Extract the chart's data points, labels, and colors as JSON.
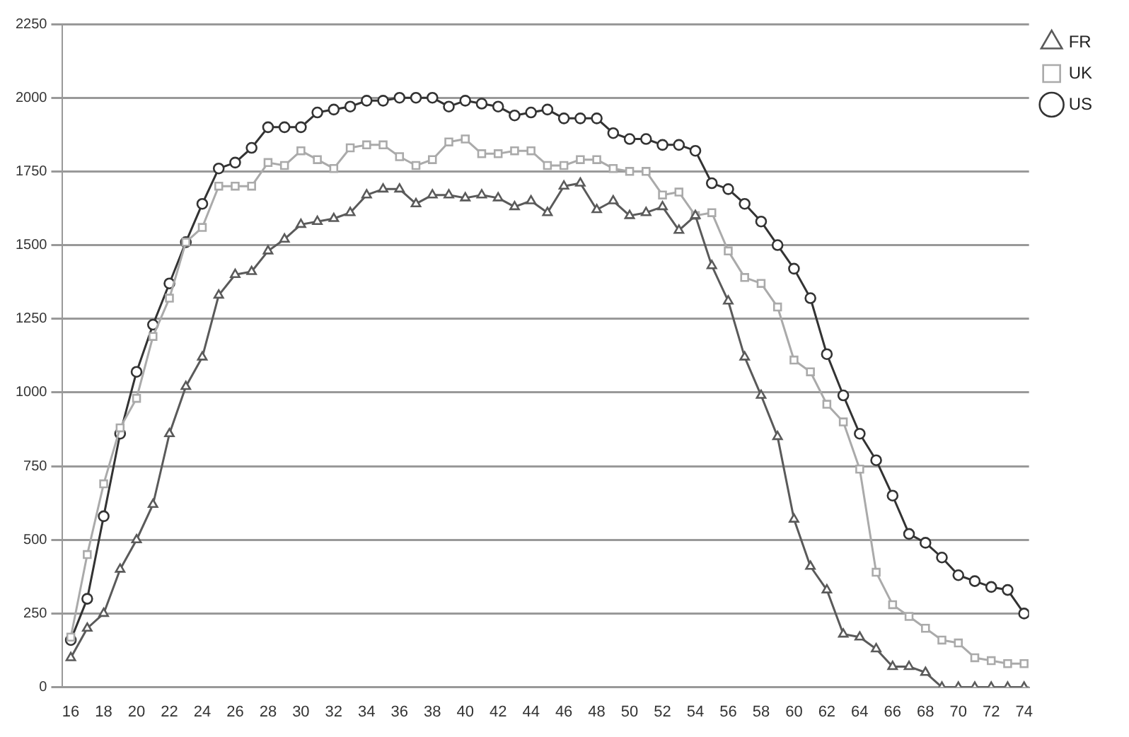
{
  "chart_data": {
    "type": "line",
    "x": [
      16,
      17,
      18,
      19,
      20,
      21,
      22,
      23,
      24,
      25,
      26,
      27,
      28,
      29,
      30,
      31,
      32,
      33,
      34,
      35,
      36,
      37,
      38,
      39,
      40,
      41,
      42,
      43,
      44,
      45,
      46,
      47,
      48,
      49,
      50,
      51,
      52,
      53,
      54,
      55,
      56,
      57,
      58,
      59,
      60,
      61,
      62,
      63,
      64,
      65,
      66,
      67,
      68,
      69,
      70,
      71,
      72,
      73,
      74
    ],
    "series": [
      {
        "name": "FR",
        "color": "#5a5a5a",
        "marker": "triangle",
        "values": [
          100,
          200,
          250,
          400,
          500,
          620,
          860,
          1020,
          1120,
          1330,
          1400,
          1410,
          1480,
          1520,
          1570,
          1580,
          1590,
          1610,
          1670,
          1690,
          1690,
          1640,
          1670,
          1670,
          1660,
          1670,
          1660,
          1630,
          1650,
          1610,
          1700,
          1710,
          1620,
          1650,
          1600,
          1610,
          1630,
          1550,
          1600,
          1430,
          1310,
          1120,
          990,
          850,
          570,
          410,
          330,
          180,
          170,
          130,
          70,
          70,
          50,
          0,
          0,
          0,
          0,
          0,
          0
        ]
      },
      {
        "name": "UK",
        "color": "#aaaaaa",
        "marker": "square",
        "values": [
          170,
          450,
          690,
          880,
          980,
          1190,
          1320,
          1510,
          1560,
          1700,
          1700,
          1700,
          1780,
          1770,
          1820,
          1790,
          1760,
          1830,
          1840,
          1840,
          1800,
          1770,
          1790,
          1850,
          1860,
          1810,
          1810,
          1820,
          1820,
          1770,
          1770,
          1790,
          1790,
          1760,
          1750,
          1750,
          1670,
          1680,
          1600,
          1610,
          1480,
          1390,
          1370,
          1290,
          1110,
          1070,
          960,
          900,
          740,
          390,
          280,
          240,
          200,
          160,
          150,
          100,
          90,
          80,
          80
        ]
      },
      {
        "name": "US",
        "color": "#333333",
        "marker": "circle",
        "values": [
          160,
          300,
          580,
          860,
          1070,
          1230,
          1370,
          1510,
          1640,
          1760,
          1780,
          1830,
          1900,
          1900,
          1900,
          1950,
          1960,
          1970,
          1990,
          1990,
          2000,
          2000,
          2000,
          1970,
          1990,
          1980,
          1970,
          1940,
          1950,
          1960,
          1930,
          1930,
          1930,
          1880,
          1860,
          1860,
          1840,
          1840,
          1820,
          1710,
          1690,
          1640,
          1580,
          1500,
          1420,
          1320,
          1130,
          990,
          860,
          770,
          650,
          520,
          490,
          440,
          380,
          360,
          340,
          330,
          250
        ]
      }
    ],
    "xlim": [
      15.5,
      74.3
    ],
    "xticks": [
      16,
      18,
      20,
      22,
      24,
      26,
      28,
      30,
      32,
      34,
      36,
      38,
      40,
      42,
      44,
      46,
      48,
      50,
      52,
      54,
      56,
      58,
      60,
      62,
      64,
      66,
      68,
      70,
      72,
      74
    ],
    "ylim": [
      0,
      2250
    ],
    "yticks": [
      0,
      250,
      500,
      750,
      1000,
      1250,
      1500,
      1750,
      2000,
      2250
    ],
    "grid": "y",
    "legend": "top right"
  }
}
